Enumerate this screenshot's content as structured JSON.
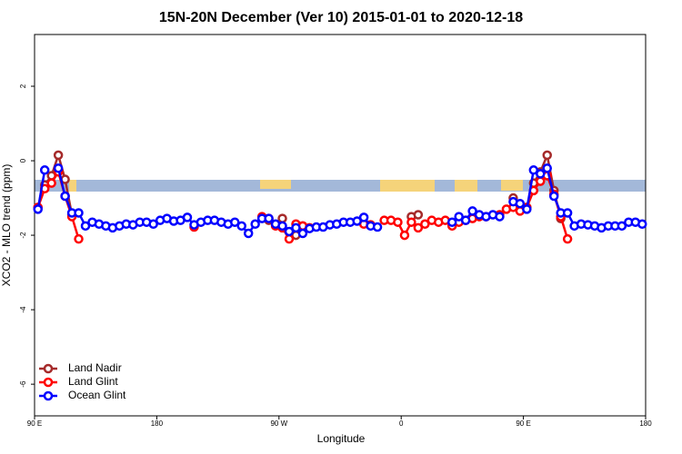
{
  "chart_data": {
    "type": "line",
    "title": "15N-20N December (Ver 10)   2015-01-01 to 2020-12-18",
    "x_label": "Longitude",
    "y_label": "XCO2 - MLO trend (ppm)",
    "xlim": [
      90,
      540
    ],
    "ylim": [
      -6.85,
      3.39
    ],
    "xticks": [
      {
        "value": 90,
        "label": "90 E"
      },
      {
        "value": 180,
        "label": "180"
      },
      {
        "value": 270,
        "label": "90 W"
      },
      {
        "value": 360,
        "label": "0"
      },
      {
        "value": 450,
        "label": "90 E"
      },
      {
        "value": 540,
        "label": "180"
      }
    ],
    "yticks": [
      -6,
      -4,
      -2,
      0,
      2
    ],
    "legend": "bottom-left",
    "x": [
      92.5,
      97.5,
      102.5,
      107.5,
      112.5,
      117.5,
      122.5,
      127.5,
      132.5,
      137.5,
      142.5,
      147.5,
      152.5,
      157.5,
      162.5,
      167.5,
      172.5,
      177.5,
      182.5,
      187.5,
      192.5,
      197.5,
      202.5,
      207.5,
      212.5,
      217.5,
      222.5,
      227.5,
      232.5,
      237.5,
      242.5,
      247.5,
      252.5,
      257.5,
      262.5,
      267.5,
      272.5,
      277.5,
      282.5,
      287.5,
      292.5,
      297.5,
      302.5,
      307.5,
      312.5,
      317.5,
      322.5,
      327.5,
      332.5,
      337.5,
      342.5,
      347.5,
      352.5,
      357.5,
      362.5,
      367.5,
      372.5,
      377.5,
      382.5,
      387.5,
      392.5,
      397.5,
      402.5,
      407.5,
      412.5,
      417.5,
      422.5,
      427.5,
      432.5,
      437.5,
      442.5,
      447.5,
      452.5,
      457.5,
      462.5,
      467.5,
      472.5,
      477.5,
      482.5,
      487.5,
      492.5,
      497.5,
      502.5,
      507.5,
      512.5,
      517.5,
      522.5,
      527.5,
      532.5,
      537.5
    ],
    "series": [
      {
        "name": "Land Nadir",
        "color": "#a52a2a",
        "values": [
          null,
          -0.65,
          -0.4,
          0.15,
          -0.5,
          -1.45,
          null,
          null,
          null,
          null,
          null,
          null,
          null,
          null,
          null,
          null,
          null,
          null,
          null,
          null,
          null,
          null,
          null,
          null,
          null,
          null,
          null,
          null,
          null,
          null,
          null,
          null,
          null,
          null,
          -1.6,
          null,
          -1.55,
          null,
          -2.0,
          -1.75,
          null,
          null,
          null,
          null,
          null,
          null,
          null,
          null,
          null,
          null,
          null,
          null,
          null,
          null,
          null,
          -1.5,
          -1.45,
          null,
          null,
          null,
          null,
          null,
          null,
          null,
          null,
          null,
          null,
          null,
          null,
          null,
          -1.0,
          -1.3,
          null,
          -0.6,
          -0.3,
          0.15,
          -0.8,
          -1.55,
          null,
          null,
          null,
          null,
          null,
          null,
          null,
          null,
          null,
          null,
          null,
          null
        ]
      },
      {
        "name": "Land Glint",
        "color": "#ff0000",
        "values": [
          -1.25,
          -0.75,
          -0.6,
          -0.3,
          -0.95,
          -1.5,
          -2.1,
          null,
          null,
          null,
          null,
          null,
          null,
          null,
          null,
          null,
          null,
          null,
          null,
          null,
          null,
          null,
          null,
          -1.78,
          null,
          null,
          null,
          null,
          null,
          null,
          null,
          null,
          null,
          -1.5,
          -1.55,
          -1.75,
          -1.8,
          -2.1,
          -1.7,
          -1.75,
          -1.8,
          null,
          null,
          null,
          null,
          null,
          null,
          null,
          -1.7,
          -1.72,
          null,
          -1.6,
          -1.6,
          -1.65,
          -2.0,
          -1.65,
          -1.8,
          -1.7,
          -1.6,
          -1.65,
          -1.6,
          -1.75,
          -1.65,
          -1.6,
          -1.55,
          -1.5,
          -1.5,
          null,
          -1.45,
          -1.3,
          -1.25,
          -1.35,
          -1.25,
          -0.8,
          -0.55,
          -0.4,
          -0.9,
          -1.5,
          -2.1,
          null,
          null,
          null,
          null,
          null,
          null,
          null,
          null,
          null,
          null,
          null
        ]
      },
      {
        "name": "Ocean Glint",
        "color": "#0000ff",
        "values": [
          -1.3,
          -0.25,
          null,
          -0.2,
          -0.95,
          -1.4,
          -1.4,
          -1.75,
          -1.65,
          -1.7,
          -1.75,
          -1.8,
          -1.75,
          -1.7,
          -1.72,
          -1.65,
          -1.65,
          -1.7,
          -1.6,
          -1.55,
          -1.62,
          -1.6,
          -1.52,
          -1.72,
          -1.65,
          -1.6,
          -1.6,
          -1.65,
          -1.7,
          -1.65,
          -1.75,
          -1.95,
          -1.7,
          -1.55,
          -1.55,
          -1.7,
          -1.75,
          -1.9,
          -1.8,
          -1.95,
          -1.82,
          -1.78,
          -1.78,
          -1.72,
          -1.7,
          -1.65,
          -1.65,
          -1.62,
          -1.52,
          -1.75,
          -1.78,
          null,
          null,
          null,
          null,
          null,
          null,
          null,
          null,
          null,
          null,
          -1.65,
          -1.5,
          -1.6,
          -1.35,
          -1.45,
          -1.5,
          -1.45,
          -1.5,
          null,
          -1.1,
          -1.15,
          -1.3,
          -0.25,
          -0.35,
          -0.2,
          -0.95,
          -1.4,
          -1.4,
          -1.75,
          -1.7,
          -1.72,
          -1.75,
          -1.8,
          -1.75,
          -1.75,
          -1.75,
          -1.65,
          -1.65,
          -1.7
        ]
      }
    ]
  }
}
